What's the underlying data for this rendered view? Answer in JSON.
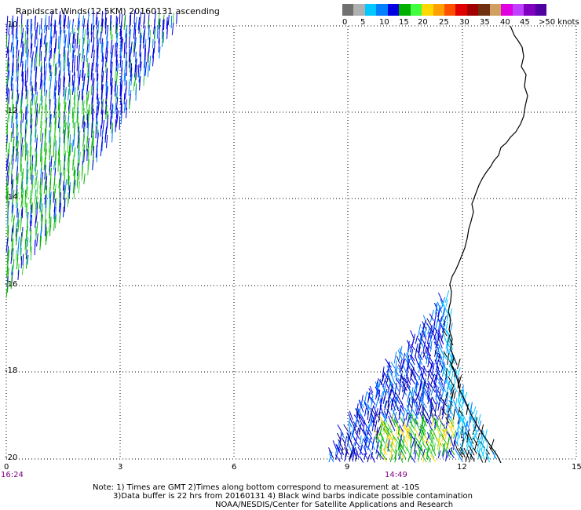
{
  "title": "Rapidscat Winds(12.5KM) 20160131 ascending",
  "legend": {
    "labels": [
      "0",
      "5",
      "10",
      "15",
      "20",
      "25",
      "30",
      "35",
      "40",
      "45",
      ">50 knots"
    ],
    "colors": [
      "#707070",
      "#b0b0b0",
      "#00c8ff",
      "#0080ff",
      "#0000e0",
      "#00b000",
      "#40ff40",
      "#ffd800",
      "#ffa000",
      "#ff5000",
      "#e00000",
      "#a00000",
      "#703010",
      "#d0a060",
      "#e000e0",
      "#c040ff",
      "#8000c0",
      "#5000a0"
    ]
  },
  "map": {
    "lat_labels": [
      "-10",
      "-12",
      "-14",
      "-16",
      "-18",
      "-20"
    ],
    "lon_labels": [
      "0",
      "3",
      "6",
      "9",
      "12",
      "15"
    ],
    "time_labels": [
      "16:24",
      "14:49"
    ]
  },
  "notes": {
    "line1": "Note: 1) Times are GMT 2)Times along bottom correspond to measurement at -10S",
    "line2": "3)Data buffer is 22 hrs from 20160131 4) Black wind barbs indicate possible contamination",
    "line3": "NOAA/NESDIS/Center for Satellite Applications and Research"
  }
}
